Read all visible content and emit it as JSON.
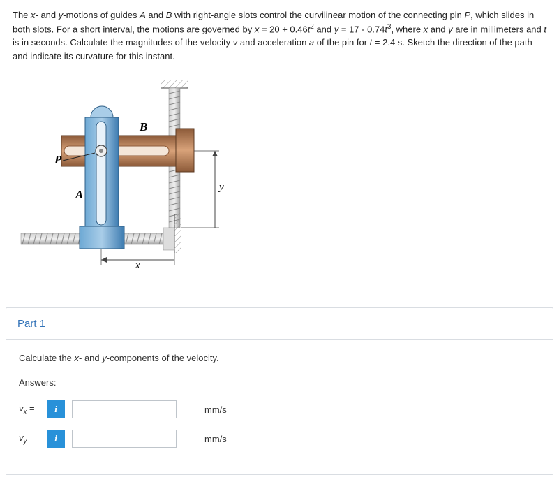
{
  "question": {
    "statement_html": "The <span class='italic'>x</span>- and <span class='italic'>y</span>-motions of guides <span class='italic'>A</span> and <span class='italic'>B</span> with right-angle slots control the curvilinear motion of the connecting pin <span class='italic'>P</span>, which slides in both slots. For a short interval, the motions are governed by <span class='italic'>x</span> = 20 + 0.46<span class='italic'>t</span><span class='sup'>2</span> and <span class='italic'>y</span> = 17 - 0.74<span class='italic'>t</span><span class='sup'>3</span>, where <span class='italic'>x</span> and <span class='italic'>y</span> are in millimeters and <span class='italic'>t</span> is in seconds. Calculate the magnitudes of the velocity <span class='italic'>v</span> and acceleration <span class='italic'>a</span> of the pin for <span class='italic'>t</span> = 2.4 s. Sketch the direction of the path and indicate its curvature for this instant."
  },
  "figure": {
    "labels": {
      "A": "A",
      "B": "B",
      "P": "P",
      "x": "x",
      "y": "y"
    },
    "colors": {
      "blue_light": "#a9cde8",
      "blue_mid": "#6ea9d4",
      "blue_dark": "#3d7bb0",
      "brown_light": "#d8a279",
      "brown_mid": "#b87b52",
      "brown_dark": "#8c5a39",
      "gray": "#b5b5b5",
      "gray_dark": "#7a7a7a",
      "hatch": "#9a9a9a",
      "line": "#444"
    }
  },
  "part1": {
    "title": "Part 1",
    "prompt_html": "Calculate the <span class='italic'>x</span>- and <span class='italic'>y</span>-components of the velocity.",
    "answers_label": "Answers:",
    "rows": [
      {
        "var_html": "<span class='italic'>v<span class='sub'>x</span></span> =",
        "unit": "mm/s",
        "value": ""
      },
      {
        "var_html": "<span class='italic'>v<span class='sub'>y</span></span> =",
        "unit": "mm/s",
        "value": ""
      }
    ]
  }
}
